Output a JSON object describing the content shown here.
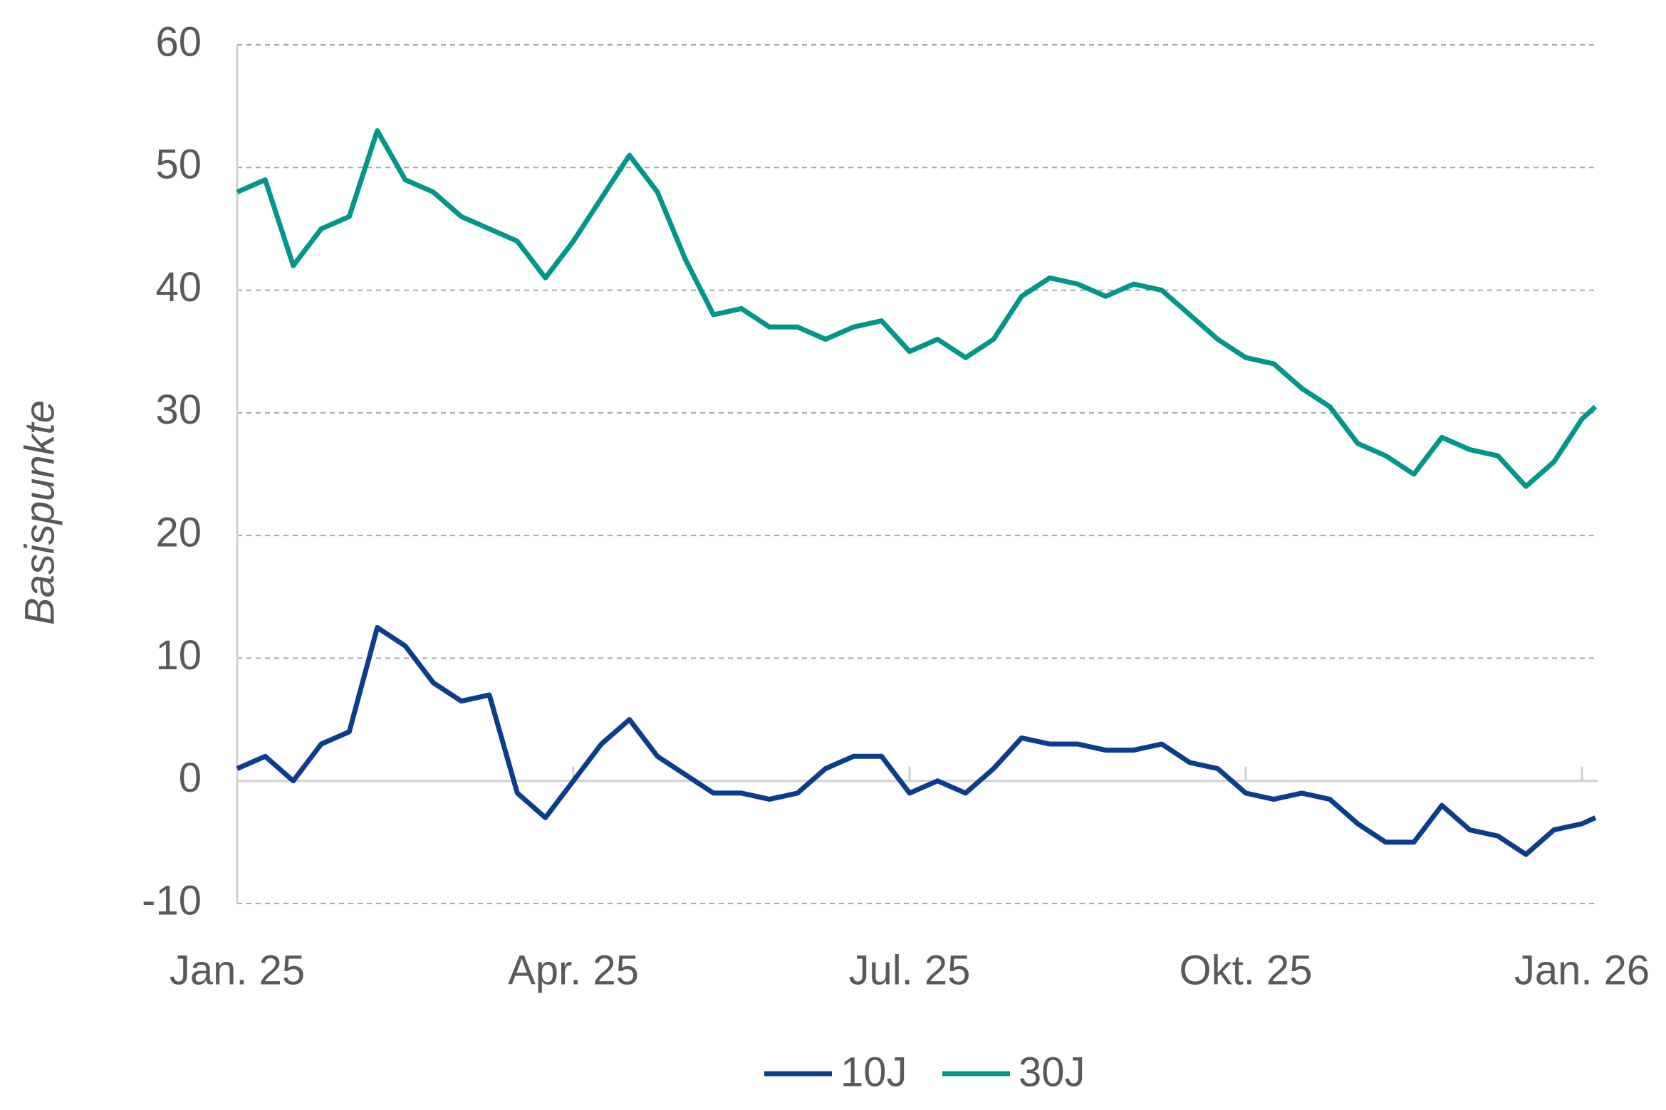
{
  "chart_data": {
    "type": "line",
    "y_label": "Basispunkte",
    "x": [
      0,
      0.25,
      0.5,
      0.75,
      1.0,
      1.25,
      1.5,
      1.75,
      2.0,
      2.25,
      2.5,
      2.75,
      3.0,
      3.25,
      3.5,
      3.75,
      4.0,
      4.25,
      4.5,
      4.75,
      5.0,
      5.25,
      5.5,
      5.75,
      6.0,
      6.25,
      6.5,
      6.75,
      7.0,
      7.25,
      7.5,
      7.75,
      8.0,
      8.25,
      8.5,
      8.75,
      9.0,
      9.25,
      9.5,
      9.75,
      10.0,
      10.25,
      10.5,
      10.75,
      11.0,
      11.25,
      11.5,
      11.75,
      12.0,
      12.12
    ],
    "series": [
      {
        "name": "10J",
        "color": "#0b3d8c",
        "values": [
          1,
          2,
          0,
          3,
          4,
          12.5,
          11,
          8,
          6.5,
          7,
          -1,
          -3,
          0,
          3,
          5,
          2,
          0.5,
          -1,
          -1,
          -1.5,
          -1,
          1,
          2,
          2,
          -1,
          0,
          -1,
          1,
          3.5,
          3,
          3,
          2.5,
          2.5,
          3,
          1.5,
          1,
          -1,
          -1.5,
          -1,
          -1.5,
          -3.5,
          -5,
          -5,
          -2,
          -4,
          -4.5,
          -6,
          -4,
          -3.5,
          -3
        ]
      },
      {
        "name": "30J",
        "color": "#00968a",
        "values": [
          48,
          49,
          42,
          45,
          46,
          53,
          49,
          48,
          46,
          45,
          44,
          41,
          44,
          47.5,
          51,
          48,
          42.5,
          38,
          38.5,
          37,
          37,
          36,
          37,
          37.5,
          35,
          36,
          34.5,
          36,
          39.5,
          41,
          40.5,
          39.5,
          40.5,
          40,
          38,
          36,
          34.5,
          34,
          32,
          30.5,
          27.5,
          26.5,
          25,
          28,
          27,
          26.5,
          24,
          26,
          29.5,
          30.5
        ]
      }
    ],
    "xlim": [
      0,
      12.14
    ],
    "xticks": [
      {
        "value": 0,
        "label": "Jan. 25"
      },
      {
        "value": 3,
        "label": "Apr. 25"
      },
      {
        "value": 6,
        "label": "Jul. 25"
      },
      {
        "value": 9,
        "label": "Okt. 25"
      },
      {
        "value": 12,
        "label": "Jan. 26"
      }
    ],
    "ylim": [
      -10,
      60
    ],
    "yticks": [
      -10,
      0,
      10,
      20,
      30,
      40,
      50,
      60
    ],
    "grid": true,
    "legend": "bottom"
  }
}
